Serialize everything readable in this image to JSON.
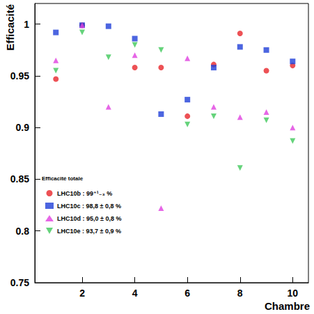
{
  "chart_data": {
    "type": "scatter",
    "x_label": "Chambre",
    "y_label": "Efficacité",
    "legend_title": "Efficacité totale",
    "legend": "lower left",
    "grid": false,
    "xlim": [
      0.2,
      10.6
    ],
    "xticks": [
      2,
      4,
      6,
      8,
      10
    ],
    "ylim": [
      0.75,
      1.02
    ],
    "yticks": [
      0.75,
      0.8,
      0.85,
      0.9,
      0.95,
      1
    ],
    "series": [
      {
        "name": "LHC10b : 99⁺¹₋₃ %",
        "color": "#e8262b",
        "marker": "circle",
        "x": [
          1,
          2,
          4,
          5,
          6,
          7,
          8,
          9,
          10
        ],
        "values": [
          0.947,
          0.999,
          0.958,
          0.958,
          0.911,
          0.961,
          0.991,
          0.955,
          0.96
        ]
      },
      {
        "name": "LHC10c : 98,8 ± 0,8 %",
        "color": "#1f3fd8",
        "marker": "square",
        "x": [
          1,
          2,
          3,
          4,
          5,
          6,
          7,
          8,
          9,
          10
        ],
        "values": [
          0.992,
          0.999,
          0.998,
          0.986,
          0.913,
          0.927,
          0.958,
          0.978,
          0.975,
          0.964
        ]
      },
      {
        "name": "LHC10d : 95,0 ± 0,8 %",
        "color": "#e040e0",
        "marker": "triangle",
        "x": [
          1,
          2,
          3,
          4,
          5,
          6,
          7,
          8,
          9,
          10
        ],
        "values": [
          0.965,
          0.999,
          0.92,
          0.97,
          0.822,
          0.967,
          0.92,
          0.91,
          0.915,
          0.9
        ]
      },
      {
        "name": "LHC10e : 93,7 ± 0,9 %",
        "color": "#3ec85a",
        "marker": "triangle-down",
        "x": [
          1,
          2,
          3,
          4,
          5,
          6,
          7,
          8,
          9,
          10
        ],
        "values": [
          0.955,
          0.992,
          0.968,
          0.98,
          0.975,
          0.903,
          0.911,
          0.861,
          0.907,
          0.887
        ]
      }
    ]
  }
}
